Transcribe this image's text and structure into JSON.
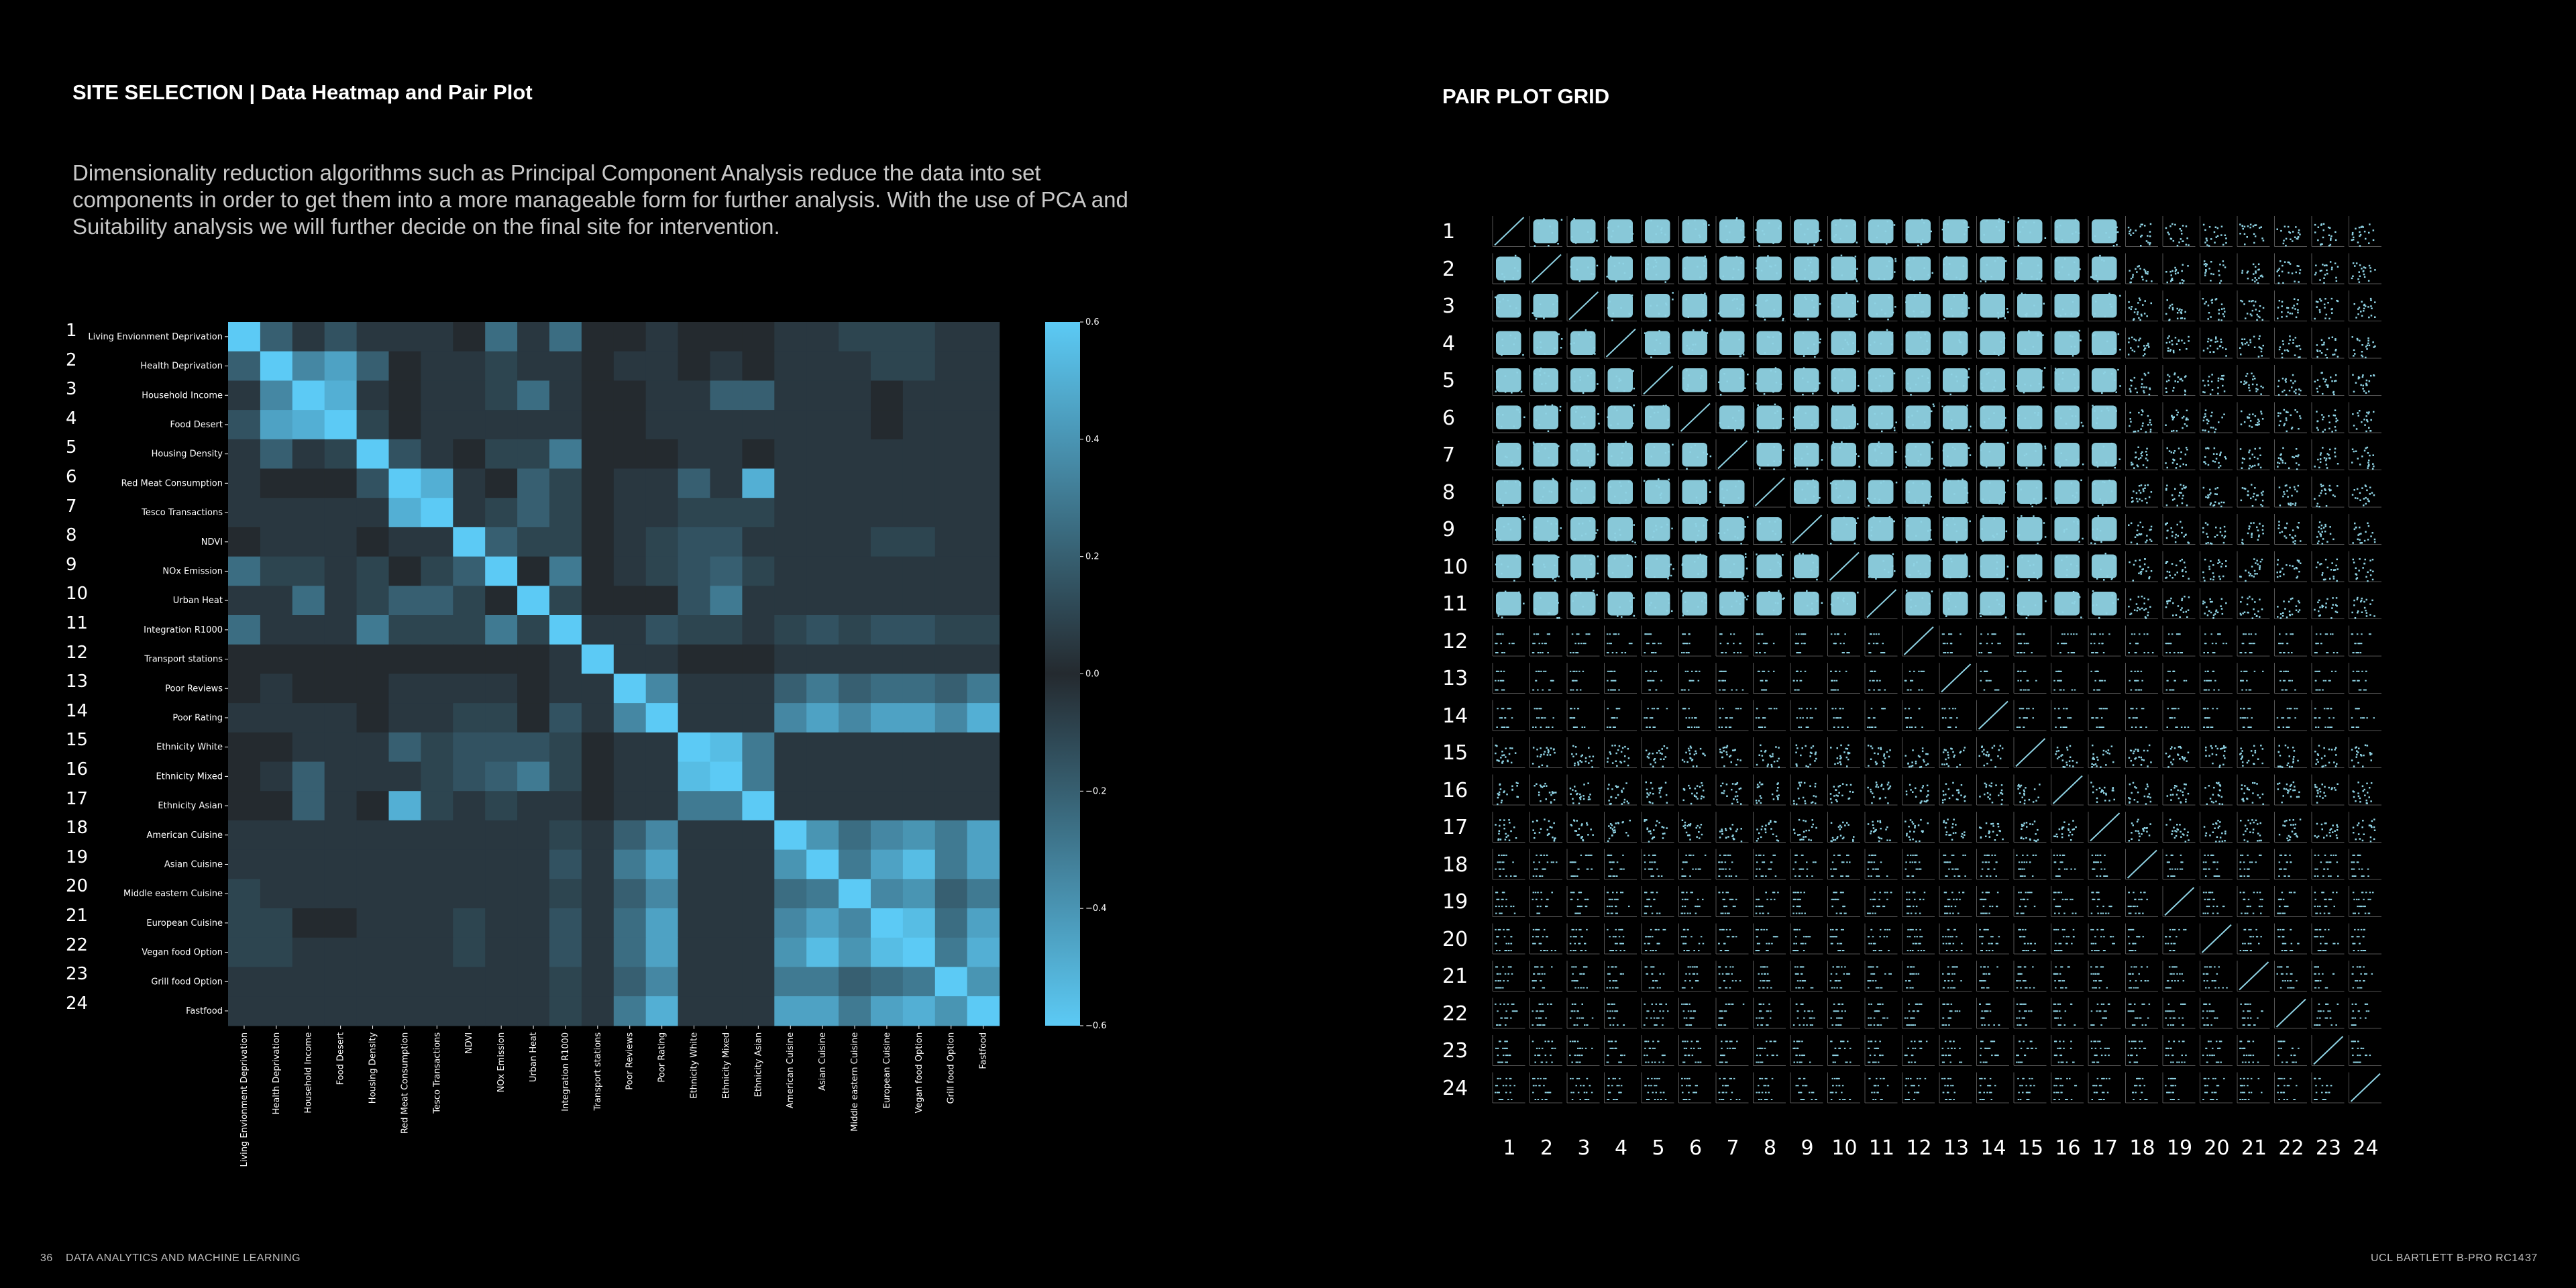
{
  "left_page": {
    "title": "SITE SELECTION | Data Heatmap and Pair Plot",
    "intro": "Dimensionality reduction algorithms such as Principal Component Analysis reduce the data into set components in order to get them into a more manageable form for further analysis. With the use of PCA and Suitability analysis we will further decide on the final site for intervention.",
    "footer_page": "36",
    "footer_label": "DATA ANALYTICS AND MACHINE  LEARNING"
  },
  "right_page": {
    "title": "PAIR PLOT GRID",
    "footer_label": "UCL BARTLETT B-PRO RC14",
    "footer_page": "37"
  },
  "colors": {
    "background": "#000000",
    "heatmap_high": "#5ccaf5",
    "heatmap_mid": "#242a2f",
    "pair_points": "#8fd3e4"
  },
  "chart_data": [
    {
      "type": "heatmap",
      "row_numbers": [
        "1",
        "2",
        "3",
        "4",
        "5",
        "6",
        "7",
        "8",
        "9",
        "10",
        "11",
        "12",
        "13",
        "14",
        "15",
        "16",
        "17",
        "18",
        "19",
        "20",
        "21",
        "22",
        "23",
        "24"
      ],
      "labels": [
        "Living Envionment Deprivation",
        "Health Deprivation",
        "Household Income",
        "Food Desert",
        "Housing Density",
        "Red Meat Consumption",
        "Tesco Transactions",
        "NDVI",
        "NOx Emission",
        "Urban Heat",
        "Integration R1000",
        "Transport stations",
        "Poor Reviews",
        "Poor Rating",
        "Ethnicity White",
        "Ethnicity Mixed",
        "Ethnicity Asian",
        "American Cuisine",
        "Asian Cuisine",
        "Middle eastern Cuisine",
        "European Cuisine",
        "Vegan food Option",
        "Grill food Option",
        "Fastfood"
      ],
      "colorbar": {
        "range": [
          -0.6,
          0.6
        ],
        "ticks": [
          "0.6",
          "0.4",
          "0.2",
          "0.0",
          "−0.2",
          "−0.4",
          "−0.6"
        ]
      },
      "values": [
        [
          1.0,
          0.2,
          0.05,
          0.15,
          0.05,
          0.05,
          0.05,
          0.0,
          0.25,
          0.05,
          0.25,
          0.0,
          0.0,
          0.05,
          0.0,
          0.0,
          0.0,
          0.05,
          0.05,
          0.1,
          0.1,
          0.1,
          0.05,
          0.05
        ],
        [
          0.2,
          1.0,
          0.35,
          0.45,
          0.2,
          0.0,
          0.05,
          0.05,
          0.1,
          0.05,
          0.05,
          0.0,
          0.05,
          0.05,
          0.0,
          0.05,
          0.0,
          0.05,
          0.05,
          0.05,
          0.1,
          0.1,
          0.05,
          0.05
        ],
        [
          0.05,
          0.35,
          1.0,
          0.5,
          0.05,
          0.0,
          0.05,
          0.05,
          0.1,
          0.25,
          0.05,
          0.0,
          0.0,
          0.05,
          0.05,
          0.2,
          0.2,
          0.05,
          0.05,
          0.05,
          0.0,
          0.05,
          0.05,
          0.05
        ],
        [
          0.15,
          0.45,
          0.5,
          1.0,
          0.1,
          0.0,
          0.05,
          0.05,
          0.05,
          0.05,
          0.05,
          0.0,
          0.0,
          0.05,
          0.05,
          0.05,
          0.05,
          0.05,
          0.05,
          0.05,
          0.0,
          0.05,
          0.05,
          0.05
        ],
        [
          0.05,
          0.2,
          0.05,
          0.1,
          1.0,
          0.15,
          0.05,
          0.0,
          0.1,
          0.1,
          0.3,
          0.0,
          0.0,
          0.0,
          0.05,
          0.05,
          0.0,
          0.05,
          0.05,
          0.05,
          0.05,
          0.05,
          0.05,
          0.05
        ],
        [
          0.05,
          0.0,
          0.0,
          0.0,
          0.15,
          1.0,
          0.5,
          0.05,
          0.0,
          0.2,
          0.1,
          0.0,
          0.05,
          0.05,
          0.2,
          0.05,
          0.5,
          0.05,
          0.05,
          0.05,
          0.05,
          0.05,
          0.05,
          0.05
        ],
        [
          0.05,
          0.05,
          0.05,
          0.05,
          0.05,
          0.5,
          1.0,
          0.05,
          0.1,
          0.2,
          0.1,
          0.0,
          0.05,
          0.05,
          0.1,
          0.1,
          0.1,
          0.05,
          0.05,
          0.05,
          0.05,
          0.05,
          0.05,
          0.05
        ],
        [
          0.0,
          0.05,
          0.05,
          0.05,
          0.0,
          0.05,
          0.05,
          1.0,
          0.2,
          0.1,
          0.1,
          0.0,
          0.05,
          0.1,
          0.15,
          0.15,
          0.05,
          0.05,
          0.05,
          0.05,
          0.1,
          0.1,
          0.05,
          0.05
        ],
        [
          0.25,
          0.1,
          0.1,
          0.05,
          0.1,
          0.0,
          0.1,
          0.2,
          1.0,
          0.0,
          0.3,
          0.0,
          0.05,
          0.1,
          0.15,
          0.2,
          0.1,
          0.05,
          0.05,
          0.05,
          0.05,
          0.05,
          0.05,
          0.05
        ],
        [
          0.05,
          0.05,
          0.25,
          0.05,
          0.1,
          0.2,
          0.2,
          0.1,
          0.0,
          1.0,
          0.1,
          0.0,
          0.0,
          0.0,
          0.15,
          0.3,
          0.05,
          0.05,
          0.05,
          0.05,
          0.05,
          0.05,
          0.05,
          0.05
        ],
        [
          0.25,
          0.05,
          0.05,
          0.05,
          0.3,
          0.1,
          0.1,
          0.1,
          0.3,
          0.1,
          1.0,
          0.05,
          0.05,
          0.15,
          0.1,
          0.1,
          0.05,
          0.1,
          0.15,
          0.1,
          0.15,
          0.15,
          0.1,
          0.1
        ],
        [
          0.0,
          0.0,
          0.0,
          0.0,
          0.0,
          0.0,
          0.0,
          0.0,
          0.0,
          0.0,
          0.05,
          1.0,
          0.05,
          0.05,
          0.0,
          0.0,
          0.0,
          0.05,
          0.05,
          0.05,
          0.05,
          0.05,
          0.05,
          0.05
        ],
        [
          0.0,
          0.05,
          0.0,
          0.0,
          0.0,
          0.05,
          0.05,
          0.05,
          0.05,
          0.0,
          0.05,
          0.05,
          1.0,
          0.35,
          0.05,
          0.05,
          0.05,
          0.2,
          0.3,
          0.2,
          0.25,
          0.25,
          0.2,
          0.3
        ],
        [
          0.05,
          0.05,
          0.05,
          0.05,
          0.0,
          0.05,
          0.05,
          0.1,
          0.1,
          0.0,
          0.15,
          0.05,
          0.35,
          1.0,
          0.05,
          0.05,
          0.05,
          0.35,
          0.45,
          0.35,
          0.45,
          0.45,
          0.35,
          0.5
        ],
        [
          0.0,
          0.0,
          0.05,
          0.05,
          0.05,
          0.2,
          0.1,
          0.15,
          0.15,
          0.15,
          0.1,
          0.0,
          0.05,
          0.05,
          1.0,
          0.55,
          0.3,
          0.05,
          0.05,
          0.05,
          0.05,
          0.05,
          0.05,
          0.05
        ],
        [
          0.0,
          0.05,
          0.2,
          0.05,
          0.05,
          0.05,
          0.1,
          0.15,
          0.2,
          0.3,
          0.1,
          0.0,
          0.05,
          0.05,
          0.55,
          1.0,
          0.3,
          0.05,
          0.05,
          0.05,
          0.05,
          0.05,
          0.05,
          0.05
        ],
        [
          0.0,
          0.0,
          0.2,
          0.05,
          0.0,
          0.5,
          0.1,
          0.05,
          0.1,
          0.05,
          0.05,
          0.0,
          0.05,
          0.05,
          0.3,
          0.3,
          1.0,
          0.05,
          0.05,
          0.05,
          0.05,
          0.05,
          0.05,
          0.05
        ],
        [
          0.05,
          0.05,
          0.05,
          0.05,
          0.05,
          0.05,
          0.05,
          0.05,
          0.05,
          0.05,
          0.1,
          0.05,
          0.2,
          0.35,
          0.05,
          0.05,
          0.05,
          1.0,
          0.4,
          0.25,
          0.35,
          0.4,
          0.3,
          0.45
        ],
        [
          0.05,
          0.05,
          0.05,
          0.05,
          0.05,
          0.05,
          0.05,
          0.05,
          0.05,
          0.05,
          0.15,
          0.05,
          0.3,
          0.45,
          0.05,
          0.05,
          0.05,
          0.4,
          1.0,
          0.3,
          0.45,
          0.55,
          0.3,
          0.45
        ],
        [
          0.1,
          0.05,
          0.05,
          0.05,
          0.05,
          0.05,
          0.05,
          0.05,
          0.05,
          0.05,
          0.1,
          0.05,
          0.2,
          0.35,
          0.05,
          0.05,
          0.05,
          0.25,
          0.3,
          1.0,
          0.35,
          0.4,
          0.2,
          0.3
        ],
        [
          0.1,
          0.1,
          0.0,
          0.0,
          0.05,
          0.05,
          0.05,
          0.1,
          0.05,
          0.05,
          0.15,
          0.05,
          0.25,
          0.45,
          0.05,
          0.05,
          0.05,
          0.35,
          0.45,
          0.35,
          1.0,
          0.55,
          0.25,
          0.45
        ],
        [
          0.1,
          0.1,
          0.05,
          0.05,
          0.05,
          0.05,
          0.05,
          0.1,
          0.05,
          0.05,
          0.15,
          0.05,
          0.25,
          0.45,
          0.05,
          0.05,
          0.05,
          0.4,
          0.55,
          0.4,
          0.55,
          1.0,
          0.3,
          0.5
        ],
        [
          0.05,
          0.05,
          0.05,
          0.05,
          0.05,
          0.05,
          0.05,
          0.05,
          0.05,
          0.05,
          0.1,
          0.05,
          0.2,
          0.35,
          0.05,
          0.05,
          0.05,
          0.3,
          0.3,
          0.2,
          0.25,
          0.3,
          1.0,
          0.4
        ],
        [
          0.05,
          0.05,
          0.05,
          0.05,
          0.05,
          0.05,
          0.05,
          0.05,
          0.05,
          0.05,
          0.1,
          0.05,
          0.3,
          0.5,
          0.05,
          0.05,
          0.05,
          0.45,
          0.45,
          0.3,
          0.45,
          0.5,
          0.4,
          1.0
        ]
      ]
    },
    {
      "type": "scatter",
      "subtype": "pair-plot-grid",
      "row_numbers": [
        "1",
        "2",
        "3",
        "4",
        "5",
        "6",
        "7",
        "8",
        "9",
        "10",
        "11",
        "12",
        "13",
        "14",
        "15",
        "16",
        "17",
        "18",
        "19",
        "20",
        "21",
        "22",
        "23",
        "24"
      ],
      "col_numbers": [
        "1",
        "2",
        "3",
        "4",
        "5",
        "6",
        "7",
        "8",
        "9",
        "10",
        "11",
        "12",
        "13",
        "14",
        "15",
        "16",
        "17",
        "18",
        "19",
        "20",
        "21",
        "22",
        "23",
        "24"
      ],
      "variables": 24
    }
  ]
}
